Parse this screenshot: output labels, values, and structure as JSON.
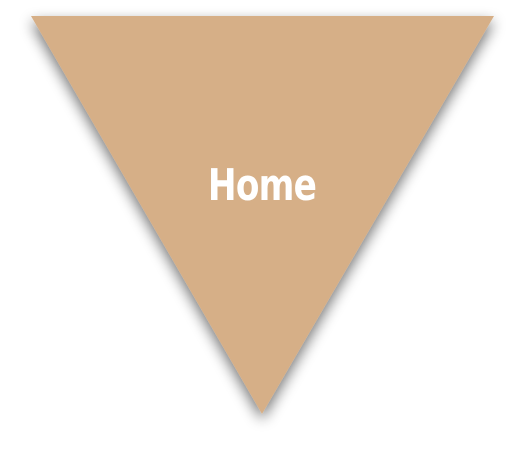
{
  "nav": {
    "home_label": "Home"
  },
  "colors": {
    "triangle_fill": "#D6AF87",
    "label_color": "#FFFFFF",
    "shadow_color": "#000000"
  }
}
